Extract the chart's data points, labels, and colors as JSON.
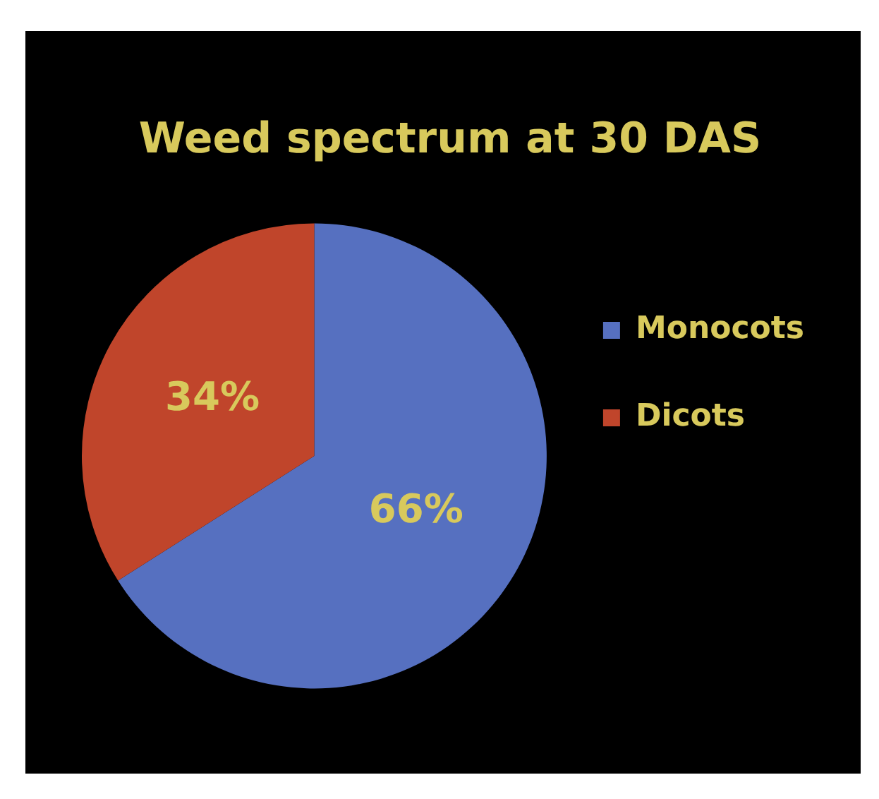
{
  "chart_data": {
    "type": "pie",
    "title": "Weed spectrum at 30 DAS",
    "categories": [
      "Monocots",
      "Dicots"
    ],
    "values": [
      66,
      34
    ],
    "value_labels": [
      "66%",
      "34%"
    ],
    "colors": [
      "#5670c0",
      "#c0452b"
    ],
    "legend": "right"
  }
}
